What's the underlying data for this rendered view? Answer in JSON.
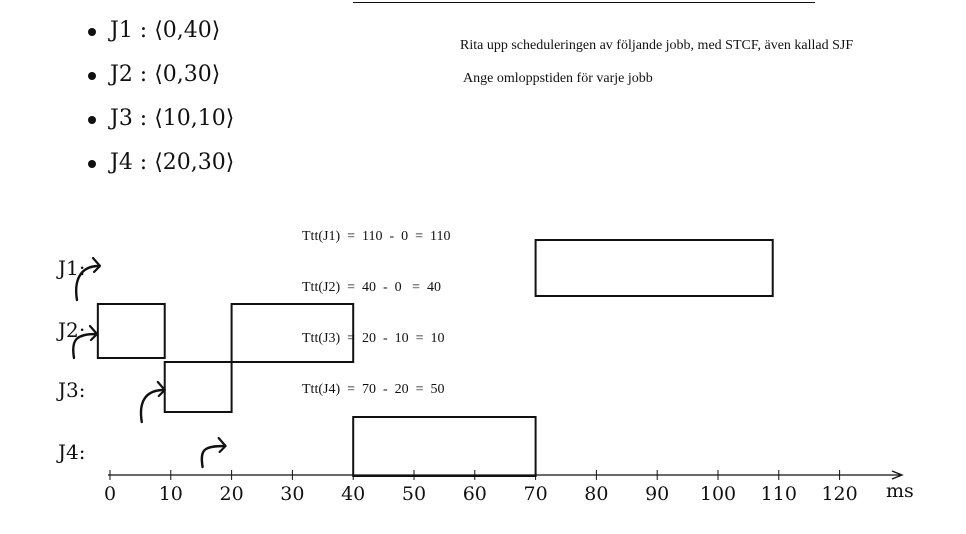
{
  "jobs": [
    {
      "label": "J1",
      "text": "J1 : ⟨0,40⟩"
    },
    {
      "label": "J2",
      "text": "J2 : ⟨0,30⟩"
    },
    {
      "label": "J3",
      "text": "J3 : ⟨10,10⟩"
    },
    {
      "label": "J4",
      "text": "J4 : ⟨20,30⟩"
    }
  ],
  "instructions": {
    "line1": "Rita upp scheduleringen av följande jobb, med STCF, även kallad SJF",
    "line2": "Ange omloppstiden för varje jobb"
  },
  "turnaround": [
    "Ttt(J1)  =  110  -  0  =  110",
    "Ttt(J2)  =  40  -  0   =  40",
    "Ttt(J3)  =  20  -  10  =  10",
    "Ttt(J4)  =  70  -  20  =  50"
  ],
  "rows": [
    "J1:",
    "J2:",
    "J3:",
    "J4:"
  ],
  "axis": {
    "ticks": [
      0,
      10,
      20,
      30,
      40,
      50,
      60,
      70,
      80,
      90,
      100,
      110,
      120
    ],
    "unit": "ms"
  },
  "schedule": [
    {
      "row": 0,
      "start": 70,
      "end": 109
    },
    {
      "row": 1,
      "start": -2,
      "end": 9
    },
    {
      "row": 1,
      "start": 20,
      "end": 40
    },
    {
      "row": 2,
      "start": 9,
      "end": 20
    },
    {
      "row": 3,
      "start": 40,
      "end": 70
    }
  ],
  "arrivals": [
    {
      "row": 0,
      "time": 0
    },
    {
      "row": 1,
      "time": 0
    },
    {
      "row": 2,
      "time": 10
    },
    {
      "row": 3,
      "time": 20
    }
  ],
  "colors": {
    "ink": "#111111",
    "background": "#ffffff"
  }
}
